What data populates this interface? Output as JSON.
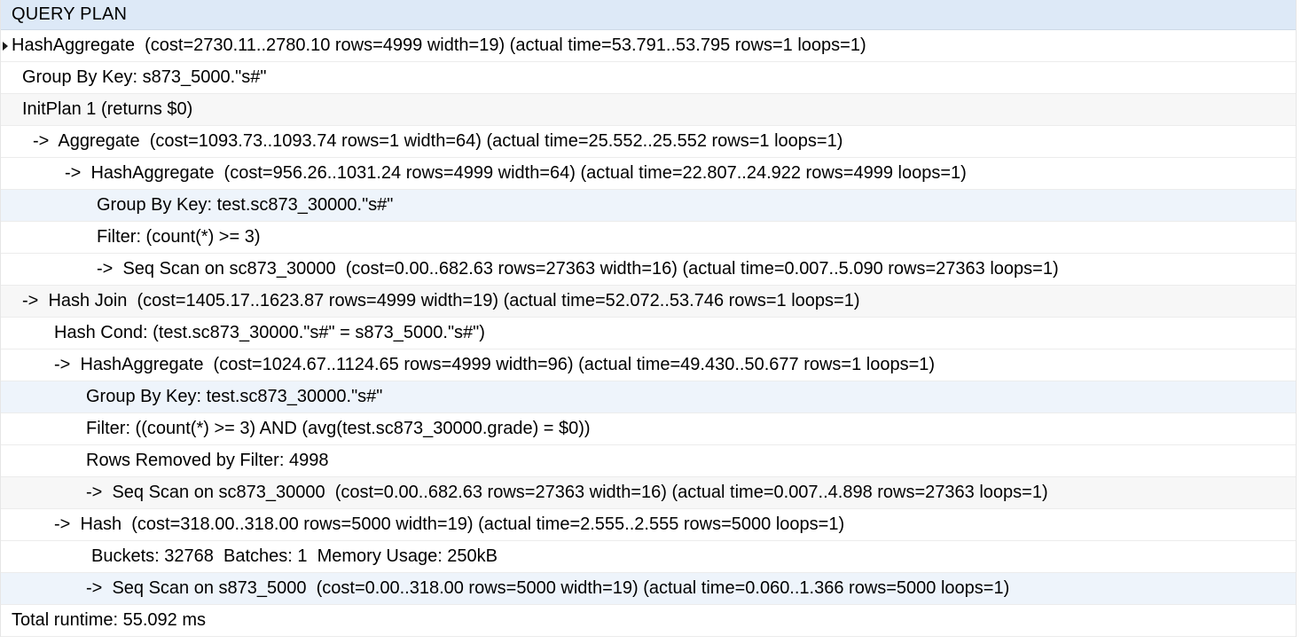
{
  "grid": {
    "column_header": "QUERY PLAN",
    "rows": [
      "HashAggregate  (cost=2730.11..2780.10 rows=4999 width=19) (actual time=53.791..53.795 rows=1 loops=1)",
      "Group By Key: s873_5000.\"s#\"",
      "InitPlan 1 (returns $0)",
      "->  Aggregate  (cost=1093.73..1093.74 rows=1 width=64) (actual time=25.552..25.552 rows=1 loops=1)",
      "->  HashAggregate  (cost=956.26..1031.24 rows=4999 width=64) (actual time=22.807..24.922 rows=4999 loops=1)",
      "Group By Key: test.sc873_30000.\"s#\"",
      "Filter: (count(*) >= 3)",
      "->  Seq Scan on sc873_30000  (cost=0.00..682.63 rows=27363 width=16) (actual time=0.007..5.090 rows=27363 loops=1)",
      "->  Hash Join  (cost=1405.17..1623.87 rows=4999 width=19) (actual time=52.072..53.746 rows=1 loops=1)",
      "Hash Cond: (test.sc873_30000.\"s#\" = s873_5000.\"s#\")",
      "->  HashAggregate  (cost=1024.67..1124.65 rows=4999 width=96) (actual time=49.430..50.677 rows=1 loops=1)",
      "Group By Key: test.sc873_30000.\"s#\"",
      "Filter: ((count(*) >= 3) AND (avg(test.sc873_30000.grade) = $0))",
      "Rows Removed by Filter: 4998",
      "->  Seq Scan on sc873_30000  (cost=0.00..682.63 rows=27363 width=16) (actual time=0.007..4.898 rows=27363 loops=1)",
      "->  Hash  (cost=318.00..318.00 rows=5000 width=19) (actual time=2.555..2.555 rows=5000 loops=1)",
      "Buckets: 32768  Batches: 1  Memory Usage: 250kB",
      "->  Seq Scan on s873_5000  (cost=0.00..318.00 rows=5000 width=19) (actual time=0.060..1.366 rows=5000 loops=1)",
      "Total runtime: 55.092 ms"
    ]
  }
}
